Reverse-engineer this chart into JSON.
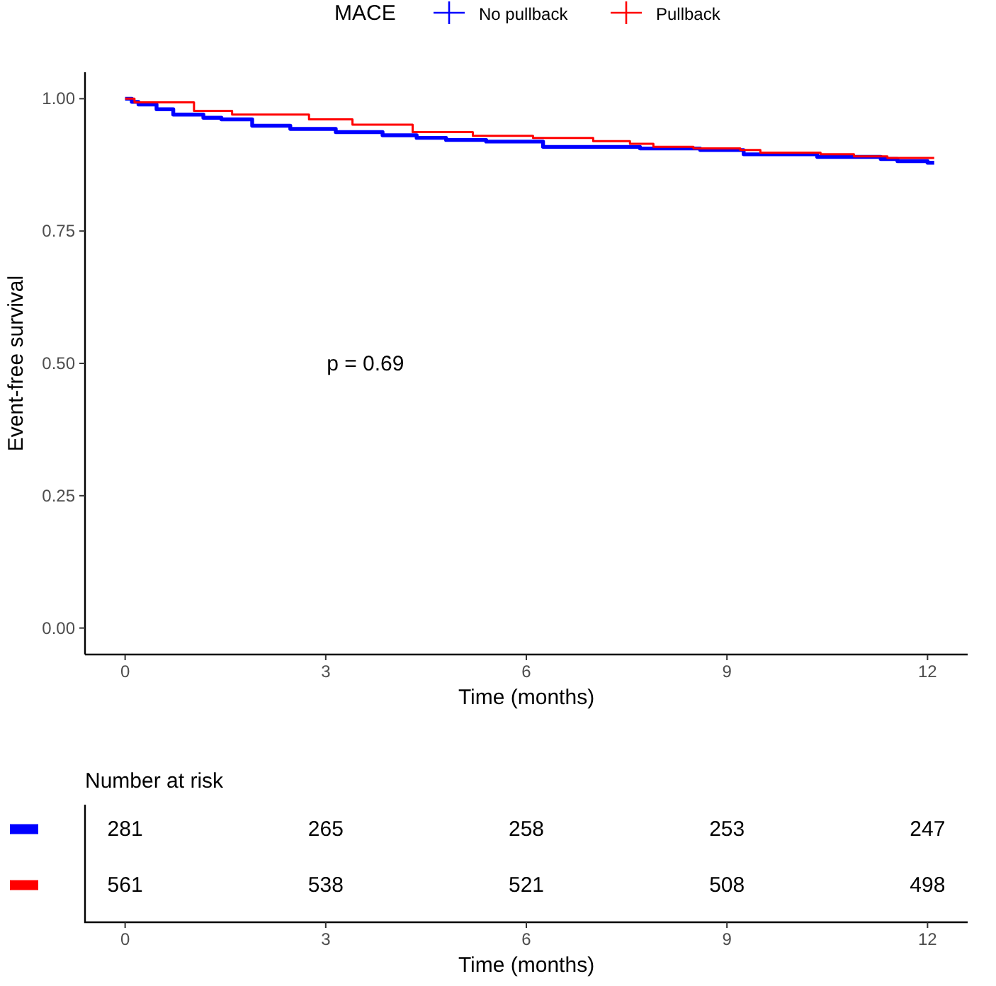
{
  "chart_data": [
    {
      "type": "step",
      "xlabel": "Time (months)",
      "ylabel": "Event-free survival",
      "legend_title": "MACE",
      "legend": "top",
      "xlim": [
        -0.6,
        12.6
      ],
      "xticks": [
        0,
        3,
        6,
        9,
        12
      ],
      "ylim": [
        -0.05,
        1.05
      ],
      "yticks": [
        {
          "value": 0,
          "label": "0.00"
        },
        {
          "value": 0.25,
          "label": "0.25"
        },
        {
          "value": 0.5,
          "label": "0.50"
        },
        {
          "value": 0.75,
          "label": "0.75"
        },
        {
          "value": 1,
          "label": "1.00"
        }
      ],
      "grid": false,
      "annotations": [
        "p = 0.69"
      ],
      "series": [
        {
          "name": "No pullback",
          "color": "#0000ff",
          "x": [
            0,
            0.1,
            0.2,
            0.47,
            0.72,
            1.17,
            1.44,
            1.9,
            2.47,
            3.15,
            3.85,
            4.36,
            4.8,
            5.4,
            6.25,
            7.7,
            8.6,
            9.25,
            10.35,
            11.3,
            11.55,
            12,
            12.1
          ],
          "values": [
            1,
            0.994,
            0.989,
            0.98,
            0.97,
            0.964,
            0.961,
            0.949,
            0.943,
            0.937,
            0.931,
            0.926,
            0.922,
            0.919,
            0.909,
            0.906,
            0.903,
            0.895,
            0.89,
            0.886,
            0.882,
            0.879,
            0.879
          ]
        },
        {
          "name": "Pullback",
          "color": "#ff0000",
          "x": [
            0,
            0.14,
            1.03,
            1.6,
            2.75,
            3.4,
            4.3,
            5.2,
            6.1,
            7.0,
            7.55,
            7.9,
            8.5,
            9.2,
            9.5,
            10.4,
            10.9,
            11.4,
            12.1
          ],
          "values": [
            1,
            0.993,
            0.977,
            0.97,
            0.961,
            0.951,
            0.937,
            0.93,
            0.926,
            0.92,
            0.915,
            0.909,
            0.906,
            0.903,
            0.898,
            0.895,
            0.891,
            0.888,
            0.888
          ]
        }
      ]
    },
    {
      "type": "heatmap",
      "title": "Number at risk",
      "xlabel": "Time (months)",
      "categories": [
        "0",
        "3",
        "6",
        "9",
        "12"
      ],
      "y_categories": [
        null,
        null
      ],
      "colors": [
        "#0000ff",
        "#ff0000"
      ],
      "data_labels": true,
      "cells": [
        [
          281,
          265,
          258,
          253,
          247
        ],
        [
          561,
          538,
          521,
          508,
          498
        ]
      ]
    }
  ]
}
